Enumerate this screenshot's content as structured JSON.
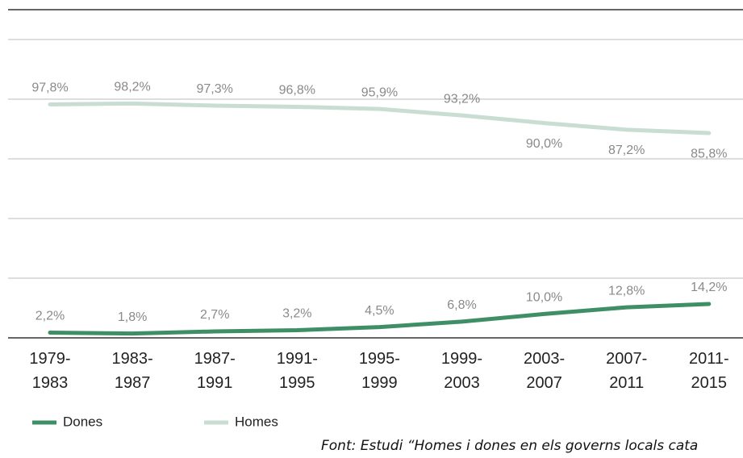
{
  "chart_data": {
    "type": "line",
    "categories": [
      "1979-\n1983",
      "1983-\n1987",
      "1987-\n1991",
      "1991-\n1995",
      "1995-\n1999",
      "1999-\n2003",
      "2003-\n2007",
      "2007-\n2011",
      "2011-\n2015"
    ],
    "series": [
      {
        "name": "Dones",
        "color": "#3f8f66",
        "values": [
          2.2,
          1.8,
          2.7,
          3.2,
          4.5,
          6.8,
          10.0,
          12.8,
          14.2
        ],
        "value_labels": [
          "2,2%",
          "1,8%",
          "2,7%",
          "3,2%",
          "4,5%",
          "6,8%",
          "10,0%",
          "12,8%",
          "14,2%"
        ]
      },
      {
        "name": "Homes",
        "color": "#c9ddd3",
        "values": [
          97.8,
          98.2,
          97.3,
          96.8,
          95.9,
          93.2,
          90.0,
          87.2,
          85.8
        ],
        "value_labels": [
          "97,8%",
          "98,2%",
          "97,3%",
          "96,8%",
          "95,9%",
          "93,2%",
          "90,0%",
          "87,2%",
          "85,8%"
        ]
      }
    ],
    "ylim": [
      0,
      125
    ],
    "yticks": [
      0,
      25,
      50,
      75,
      100,
      125
    ],
    "grid": true,
    "legend": "bottom-left",
    "source": "Font: Estudi “Homes i dones en els governs locals cata"
  }
}
